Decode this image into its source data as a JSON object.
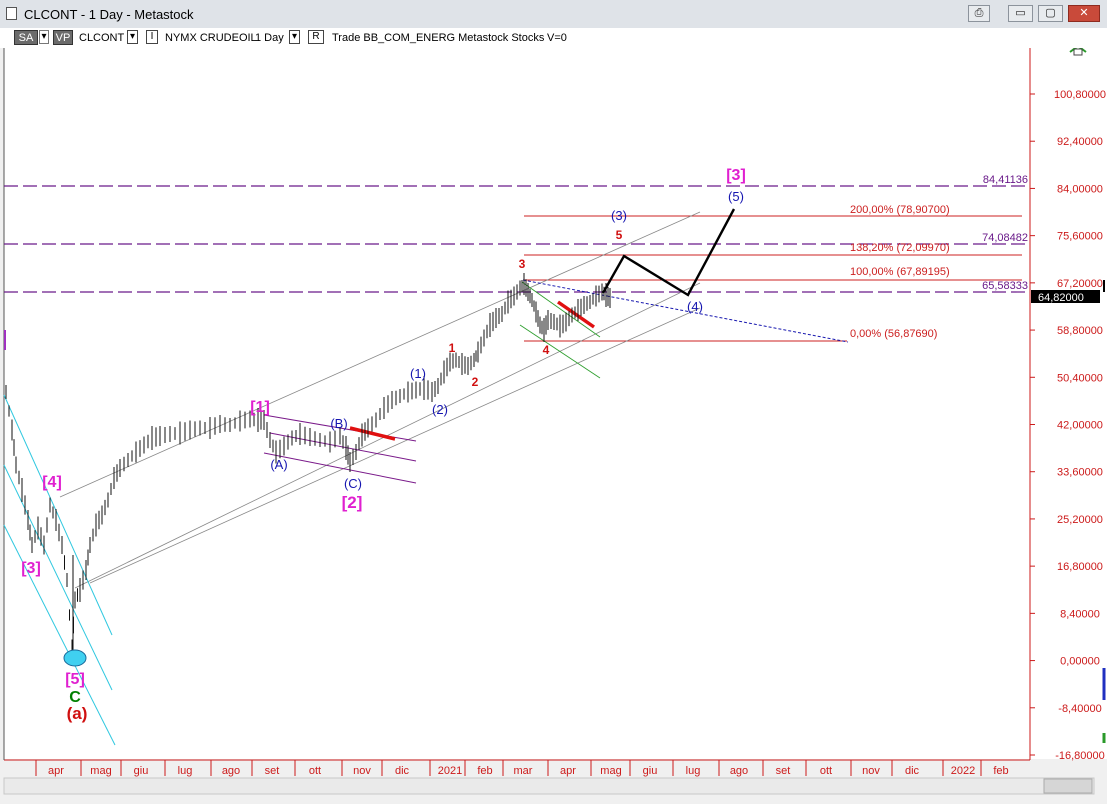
{
  "window": {
    "title": "CLCONT - 1 Day - Metastock",
    "buttons": [
      "⎙",
      "▭",
      "▢",
      "✕"
    ]
  },
  "toolbar": {
    "sa": "SA",
    "vp": "VP",
    "symbol": "CLCONT",
    "dropdown_arrow": "▾",
    "bar_icon": "I",
    "description": "NYMX CRUDEOIL",
    "period": "1 Day",
    "mode": "R",
    "rest": "Trade  BB_COM_ENERG  Metastock  Stocks",
    "volume": "V=0"
  },
  "price_axis": {
    "labels": [
      "100,80000",
      "92,40000",
      "84,00000",
      "75,60000",
      "67,20000",
      "58,80000",
      "50,40000",
      "42,00000",
      "33,60000",
      "25,20000",
      "16,80000",
      "8,40000",
      "0,00000",
      "-8,40000",
      "-16,80000"
    ],
    "current_price": "64,82000"
  },
  "time_axis": {
    "labels": [
      "apr",
      "mag",
      "giu",
      "lug",
      "ago",
      "set",
      "ott",
      "nov",
      "dic",
      "2021",
      "feb",
      "mar",
      "apr",
      "mag",
      "giu",
      "lug",
      "ago",
      "set",
      "ott",
      "nov",
      "dic",
      "2022",
      "feb"
    ]
  },
  "levels": {
    "h1": "84,41136",
    "h2": "74,08482",
    "h3": "65,58333"
  },
  "fib": {
    "l200": "200,00% (78,90700)",
    "l138": "138,20% (72,09970)",
    "l100": "100,00% (67,89195)",
    "l0": "0,00% (56,87690)"
  },
  "waves": {
    "m5": "[5]",
    "m4": "[4]",
    "m3a": "[3]",
    "m1": "[1]",
    "m2": "[2]",
    "m3b": "[3]",
    "C": "C",
    "a": "(a)",
    "A": "(A)",
    "B": "(B)",
    "Cc": "(C)",
    "b1": "(1)",
    "b2": "(2)",
    "b3": "(3)",
    "b4": "(4)",
    "b5": "(5)",
    "r1": "1",
    "r2": "2",
    "r3": "3",
    "r4": "4",
    "r5": "5"
  },
  "colors": {
    "magenta": "#e020d0",
    "blue": "#1515b0",
    "red": "#d01010",
    "green": "#008000",
    "fib": "#cc2020",
    "level": "#6a1a8a"
  }
}
